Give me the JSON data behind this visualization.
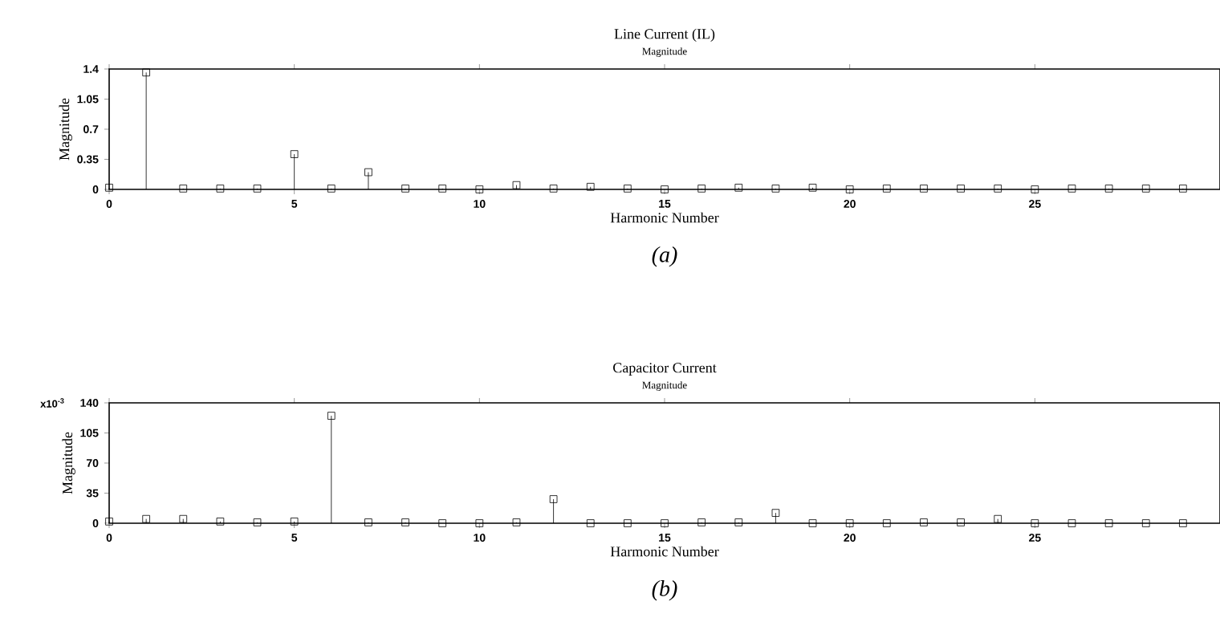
{
  "chart_data": [
    {
      "type": "lollipop",
      "title": "Line Current (IL)",
      "subtitle": "Magnitude",
      "xlabel": "Harmonic Number",
      "ylabel": "Magnitude",
      "annotations": [
        "(a)"
      ],
      "marker": "square",
      "color": "#000000",
      "x": [
        0,
        1,
        2,
        3,
        4,
        5,
        6,
        7,
        8,
        9,
        10,
        11,
        12,
        13,
        14,
        15,
        16,
        17,
        18,
        19,
        20,
        21,
        22,
        23,
        24,
        25,
        26,
        27,
        28,
        29
      ],
      "values": [
        0.02,
        1.36,
        0.01,
        0.01,
        0.01,
        0.41,
        0.01,
        0.2,
        0.01,
        0.01,
        0,
        0.05,
        0.01,
        0.03,
        0.01,
        0,
        0.01,
        0.02,
        0.01,
        0.02,
        0,
        0.01,
        0.01,
        0.01,
        0.01,
        0,
        0.01,
        0.01,
        0.01,
        0.01
      ],
      "xlim": [
        0,
        30
      ],
      "xticks": [
        0,
        5,
        10,
        15,
        20,
        25
      ],
      "ylim": [
        0,
        1.4
      ],
      "yticks": [
        0,
        0.35,
        0.7,
        1.05,
        1.4
      ]
    },
    {
      "type": "lollipop",
      "title": "Capacitor Current",
      "subtitle": "Magnitude",
      "xlabel": "Harmonic Number",
      "ylabel": "Magnitude",
      "annotations": [
        "x10$^{-3}$",
        "(b)"
      ],
      "marker": "square",
      "color": "#000000",
      "x": [
        0,
        1,
        2,
        3,
        4,
        5,
        6,
        7,
        8,
        9,
        10,
        11,
        12,
        13,
        14,
        15,
        16,
        17,
        18,
        19,
        20,
        21,
        22,
        23,
        24,
        25,
        26,
        27,
        28,
        29
      ],
      "values": [
        2,
        5,
        5,
        2,
        1,
        2,
        125,
        1,
        1,
        0,
        0,
        1,
        28,
        0,
        0,
        0,
        1,
        1,
        12,
        0,
        0,
        0,
        1,
        1,
        5,
        0,
        0,
        0,
        0,
        0
      ],
      "xlim": [
        0,
        30
      ],
      "xticks": [
        0,
        5,
        10,
        15,
        20,
        25
      ],
      "ylim": [
        0,
        140
      ],
      "yticks": [
        0,
        35,
        70,
        105,
        140
      ]
    }
  ]
}
